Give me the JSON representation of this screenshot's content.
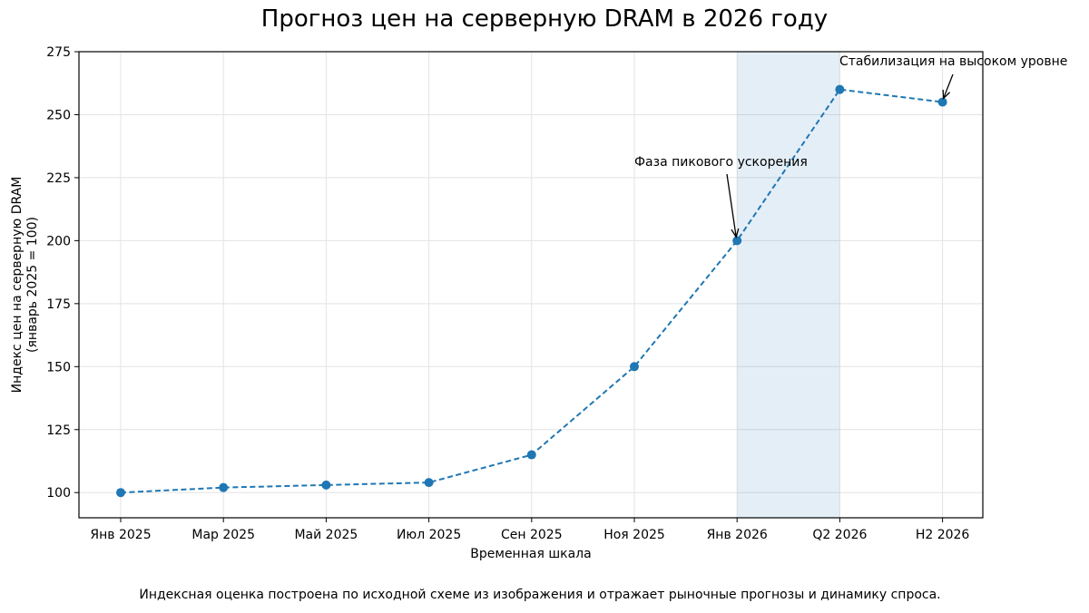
{
  "chart_data": {
    "type": "line",
    "title": "Прогноз цен на серверную DRAM в 2026 году",
    "xlabel": "Временная шкала",
    "ylabel_lines": [
      "Индекс цен на серверную DRAM",
      "(январь 2025 = 100)"
    ],
    "categories": [
      "Янв 2025",
      "Мар 2025",
      "Май 2025",
      "Июл 2025",
      "Сен 2025",
      "Ноя 2025",
      "Янв 2026",
      "Q2 2026",
      "H2 2026"
    ],
    "values": [
      100,
      102,
      103,
      104,
      115,
      150,
      200,
      260,
      255
    ],
    "ylim": [
      90,
      275
    ],
    "yticks": [
      100,
      125,
      150,
      175,
      200,
      225,
      250,
      275
    ],
    "grid": true,
    "line_style": "dashed",
    "line_color": "#1f77b4",
    "shaded_span": {
      "from": "Янв 2026",
      "to": "Q2 2026",
      "color": "#1f77b4"
    },
    "annotations": [
      {
        "text": "Фаза пикового ускорения",
        "point": "Янв 2026"
      },
      {
        "text": "Стабилизация на высоком уровне",
        "point": "H2 2026"
      }
    ],
    "footnote": "Индексная оценка построена по исходной схеме из изображения и отражает рыночные прогнозы и динамику спроса."
  }
}
